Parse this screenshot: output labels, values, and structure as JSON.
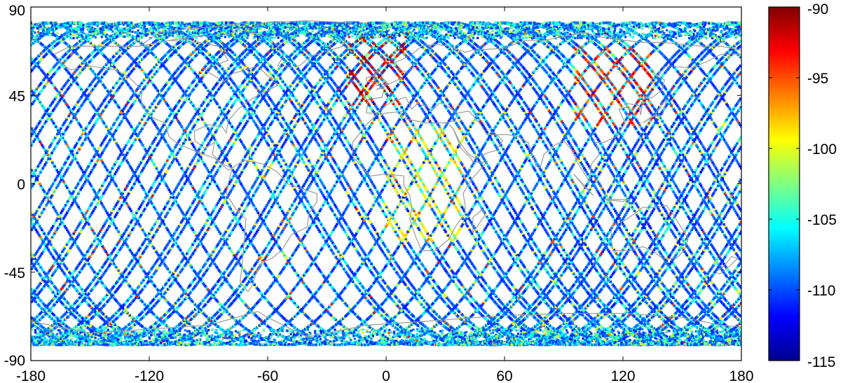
{
  "chart_data": {
    "type": "scatter",
    "title": "",
    "xlabel": "",
    "ylabel": "",
    "xlim": [
      -180,
      180
    ],
    "ylim": [
      -90,
      90
    ],
    "xticks": [
      -180,
      -120,
      -60,
      0,
      60,
      120,
      180
    ],
    "yticks": [
      90,
      45,
      0,
      -45,
      -90
    ],
    "grid": false,
    "coverage_lat": [
      -82,
      82
    ],
    "coastline_color": "#9a9a9a",
    "colorbar": {
      "colormap": "jet",
      "clim": [
        -115,
        -90
      ],
      "ticks": [
        -90,
        -95,
        -100,
        -105,
        -110,
        -115
      ],
      "position": "right"
    },
    "series": [
      {
        "description": "satellite ground-track samples colored by value",
        "typical_value": -110,
        "high_value_regions": [
          {
            "lon": [
              -20,
              10
            ],
            "lat": [
              40,
              75
            ],
            "value": -92
          },
          {
            "lon": [
              95,
              135
            ],
            "lat": [
              30,
              70
            ],
            "value": -94
          },
          {
            "lon": [
              0,
              40
            ],
            "lat": [
              -30,
              30
            ],
            "value": -99
          }
        ]
      }
    ]
  }
}
